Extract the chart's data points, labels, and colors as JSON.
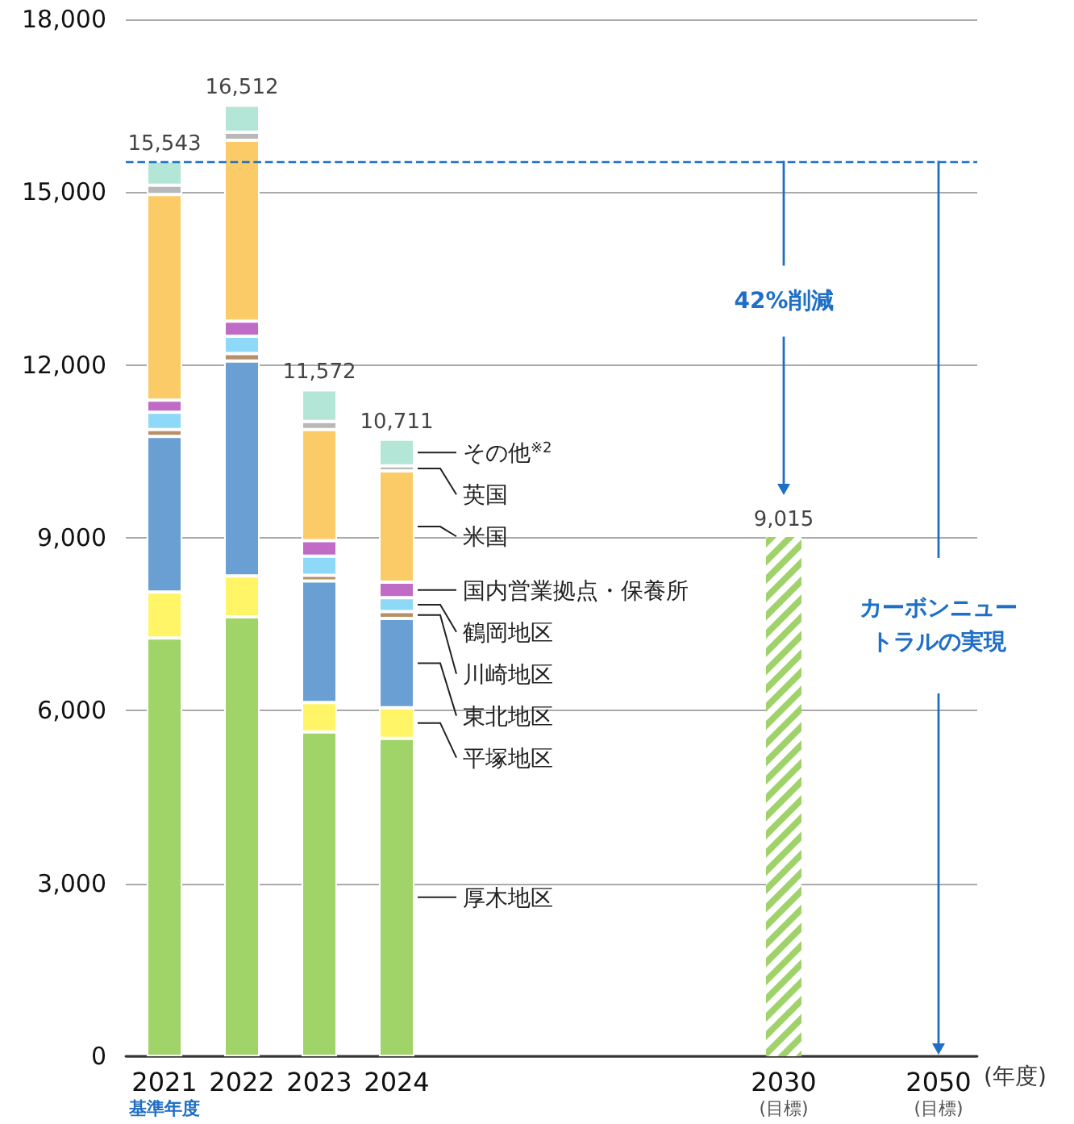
{
  "chart_data": {
    "type": "bar",
    "stacked": true,
    "xlabel": "(年度)",
    "categories": [
      "2021",
      "2022",
      "2023",
      "2024",
      null,
      null,
      null,
      null,
      "2030",
      null,
      "2050"
    ],
    "series": [
      {
        "name": "厚木地区",
        "color": "#a0d468",
        "values": [
          7260,
          7630,
          5630,
          5520,
          null,
          null,
          null,
          null,
          null,
          null,
          null
        ]
      },
      {
        "name": "平塚地区",
        "color": "#fff566",
        "values": [
          800,
          710,
          510,
          530,
          null,
          null,
          null,
          null,
          null,
          null,
          null
        ]
      },
      {
        "name": "東北地区",
        "color": "#6a9fd4",
        "values": [
          2700,
          3730,
          2110,
          1550,
          null,
          null,
          null,
          null,
          null,
          null,
          null
        ]
      },
      {
        "name": "川崎地区",
        "color": "#b89068",
        "values": [
          120,
          130,
          100,
          120,
          null,
          null,
          null,
          null,
          null,
          null,
          null
        ]
      },
      {
        "name": "鶴岡地区",
        "color": "#8ed9f8",
        "values": [
          300,
          300,
          330,
          240,
          null,
          null,
          null,
          null,
          null,
          null,
          null
        ]
      },
      {
        "name": "国内営業拠点・保養所",
        "color": "#c06bc6",
        "values": [
          210,
          260,
          270,
          270,
          null,
          null,
          null,
          null,
          null,
          null,
          null
        ]
      },
      {
        "name": "米国",
        "color": "#fbcb68",
        "values": [
          3570,
          3140,
          1930,
          1930,
          null,
          null,
          null,
          null,
          null,
          null,
          null
        ]
      },
      {
        "name": "英国",
        "color": "#b8b8b8",
        "values": [
          160,
          140,
          140,
          90,
          null,
          null,
          null,
          null,
          null,
          null,
          null
        ]
      },
      {
        "name": "その他$^{※2}$",
        "color": "#b3e6d7",
        "values": [
          420,
          470,
          550,
          460,
          null,
          null,
          null,
          null,
          null,
          null,
          null
        ]
      },
      {
        "color": "#9fd36a",
        "values": [
          null,
          null,
          null,
          null,
          null,
          null,
          null,
          null,
          9015,
          null,
          null
        ],
        "value_labels": [
          null,
          null,
          null,
          null,
          null,
          null,
          null,
          null,
          "9,015",
          null,
          null
        ]
      }
    ],
    "totals": [
      "15,543",
      "16,512",
      "11,572",
      "10,711",
      null,
      null,
      null,
      null,
      null,
      null,
      null
    ],
    "ylim": [
      0,
      18000
    ],
    "yticks": [
      0,
      {
        "value": 3000,
        "label": "3,000"
      },
      {
        "value": 6000,
        "label": "6,000"
      },
      {
        "value": 9000,
        "label": "9,000"
      },
      {
        "value": 12000,
        "label": "12,000"
      },
      {
        "value": 15000,
        "label": "15,000"
      },
      {
        "value": 18000,
        "label": "18,000"
      }
    ],
    "grid": "y",
    "ref_lines": [
      {
        "axis": "y",
        "value": 15543,
        "color": "#1f6fc6",
        "line_style": "dashed"
      }
    ],
    "annotations": [
      "基準年度",
      "(目標)",
      "(目標)",
      "42%削減",
      "カーボンニュートラルの実現"
    ]
  }
}
